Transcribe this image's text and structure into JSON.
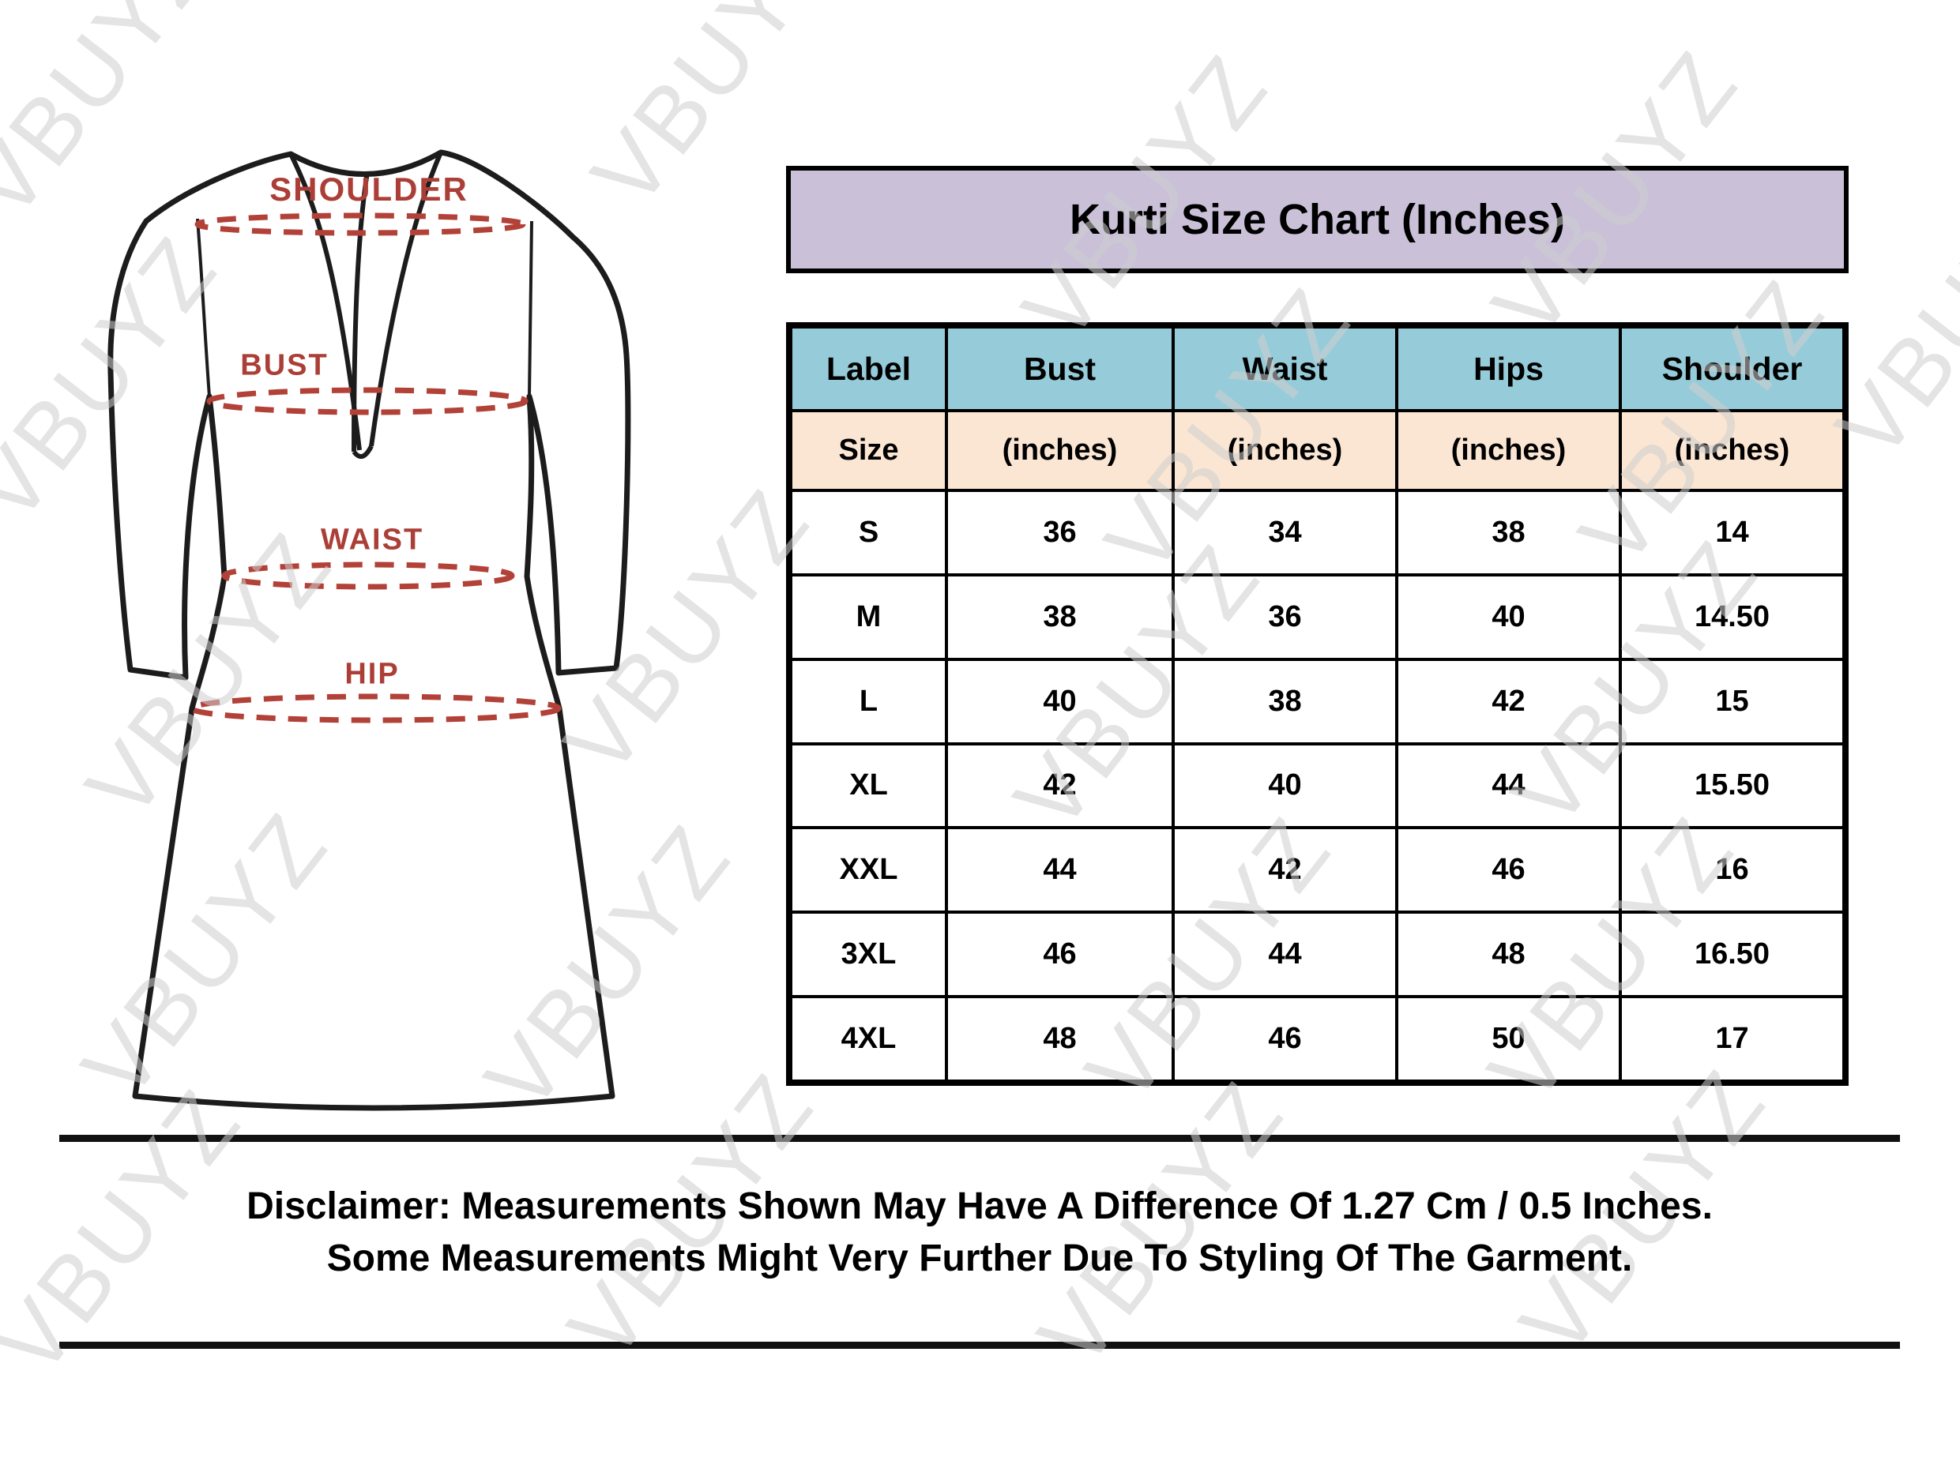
{
  "title": "Kurti Size Chart (Inches)",
  "watermark": {
    "text": "VBUYZ"
  },
  "garment": {
    "labels": {
      "shoulder": "SHOULDER",
      "bust": "BUST",
      "waist": "WAIST",
      "hip": "HIP"
    }
  },
  "table": {
    "columns": [
      "Label",
      "Bust",
      "Waist",
      "Hips",
      "Shoulder"
    ],
    "subheaders": [
      "Size",
      "(inches)",
      "(inches)",
      "(inches)",
      "(inches)"
    ],
    "rows": [
      [
        "S",
        "36",
        "34",
        "38",
        "14"
      ],
      [
        "M",
        "38",
        "36",
        "40",
        "14.50"
      ],
      [
        "L",
        "40",
        "38",
        "42",
        "15"
      ],
      [
        "XL",
        "42",
        "40",
        "44",
        "15.50"
      ],
      [
        "XXL",
        "44",
        "42",
        "46",
        "16"
      ],
      [
        "3XL",
        "46",
        "44",
        "48",
        "16.50"
      ],
      [
        "4XL",
        "48",
        "46",
        "50",
        "17"
      ]
    ]
  },
  "disclaimer": {
    "line1": "Disclaimer: Measurements Shown May Have A Difference Of 1.27 Cm / 0.5 Inches.",
    "line2": "Some Measurements Might Very Further Due To Styling Of The Garment."
  },
  "colors": {
    "title_bg": "#cac1d9",
    "header_bg": "#96cbd9",
    "subheader_bg": "#fbe6d3",
    "measure_red": "#b24138",
    "label_red": "#ab3f37",
    "line_black": "#111111",
    "watermark_gray": "#cfcfcf"
  },
  "chart_data": {
    "type": "table",
    "title": "Kurti Size Chart (Inches)",
    "columns": [
      "Label Size",
      "Bust (inches)",
      "Waist (inches)",
      "Hips (inches)",
      "Shoulder (inches)"
    ],
    "rows": [
      {
        "size": "S",
        "bust": 36,
        "waist": 34,
        "hips": 38,
        "shoulder": 14
      },
      {
        "size": "M",
        "bust": 38,
        "waist": 36,
        "hips": 40,
        "shoulder": 14.5
      },
      {
        "size": "L",
        "bust": 40,
        "waist": 38,
        "hips": 42,
        "shoulder": 15
      },
      {
        "size": "XL",
        "bust": 42,
        "waist": 40,
        "hips": 44,
        "shoulder": 15.5
      },
      {
        "size": "XXL",
        "bust": 44,
        "waist": 42,
        "hips": 46,
        "shoulder": 16
      },
      {
        "size": "3XL",
        "bust": 46,
        "waist": 44,
        "hips": 48,
        "shoulder": 16.5
      },
      {
        "size": "4XL",
        "bust": 48,
        "waist": 46,
        "hips": 50,
        "shoulder": 17
      }
    ]
  }
}
